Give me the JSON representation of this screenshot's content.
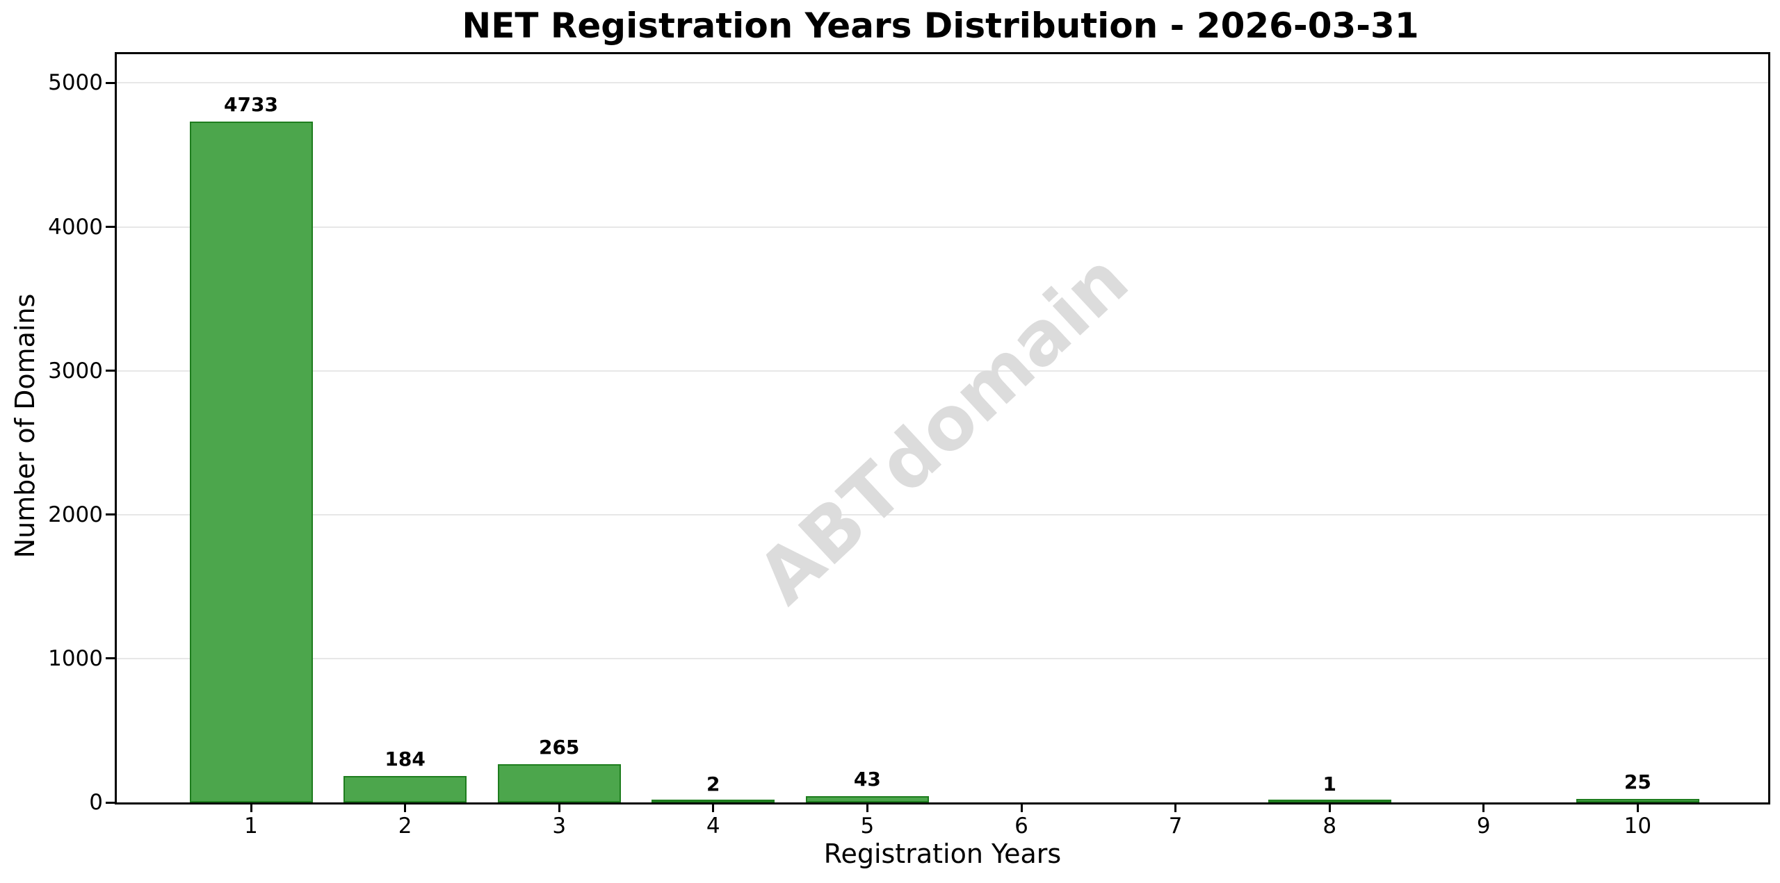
{
  "chart_data": {
    "type": "bar",
    "title": "NET Registration Years Distribution - 2026-03-31",
    "xlabel": "Registration Years",
    "ylabel": "Number of Domains",
    "categories": [
      "1",
      "2",
      "3",
      "4",
      "5",
      "6",
      "7",
      "8",
      "9",
      "10"
    ],
    "values": [
      4733,
      184,
      265,
      2,
      43,
      0,
      0,
      1,
      0,
      25
    ],
    "bar_labels": [
      "4733",
      "184",
      "265",
      "2",
      "43",
      "",
      "",
      "1",
      "",
      "25"
    ],
    "yticks": [
      0,
      1000,
      2000,
      3000,
      4000,
      5000
    ],
    "ylim": [
      0,
      5200
    ],
    "grid": "horizontal",
    "legend": "none",
    "watermark": "ABTdomain",
    "colors": {
      "bar_fill": "#4CA64C",
      "bar_edge": "#1E7D1E",
      "grid": "#E7E7E7",
      "spine": "#000000",
      "watermark": "#DCDCDC",
      "text": "#000000",
      "background": "#FFFFFF"
    }
  }
}
